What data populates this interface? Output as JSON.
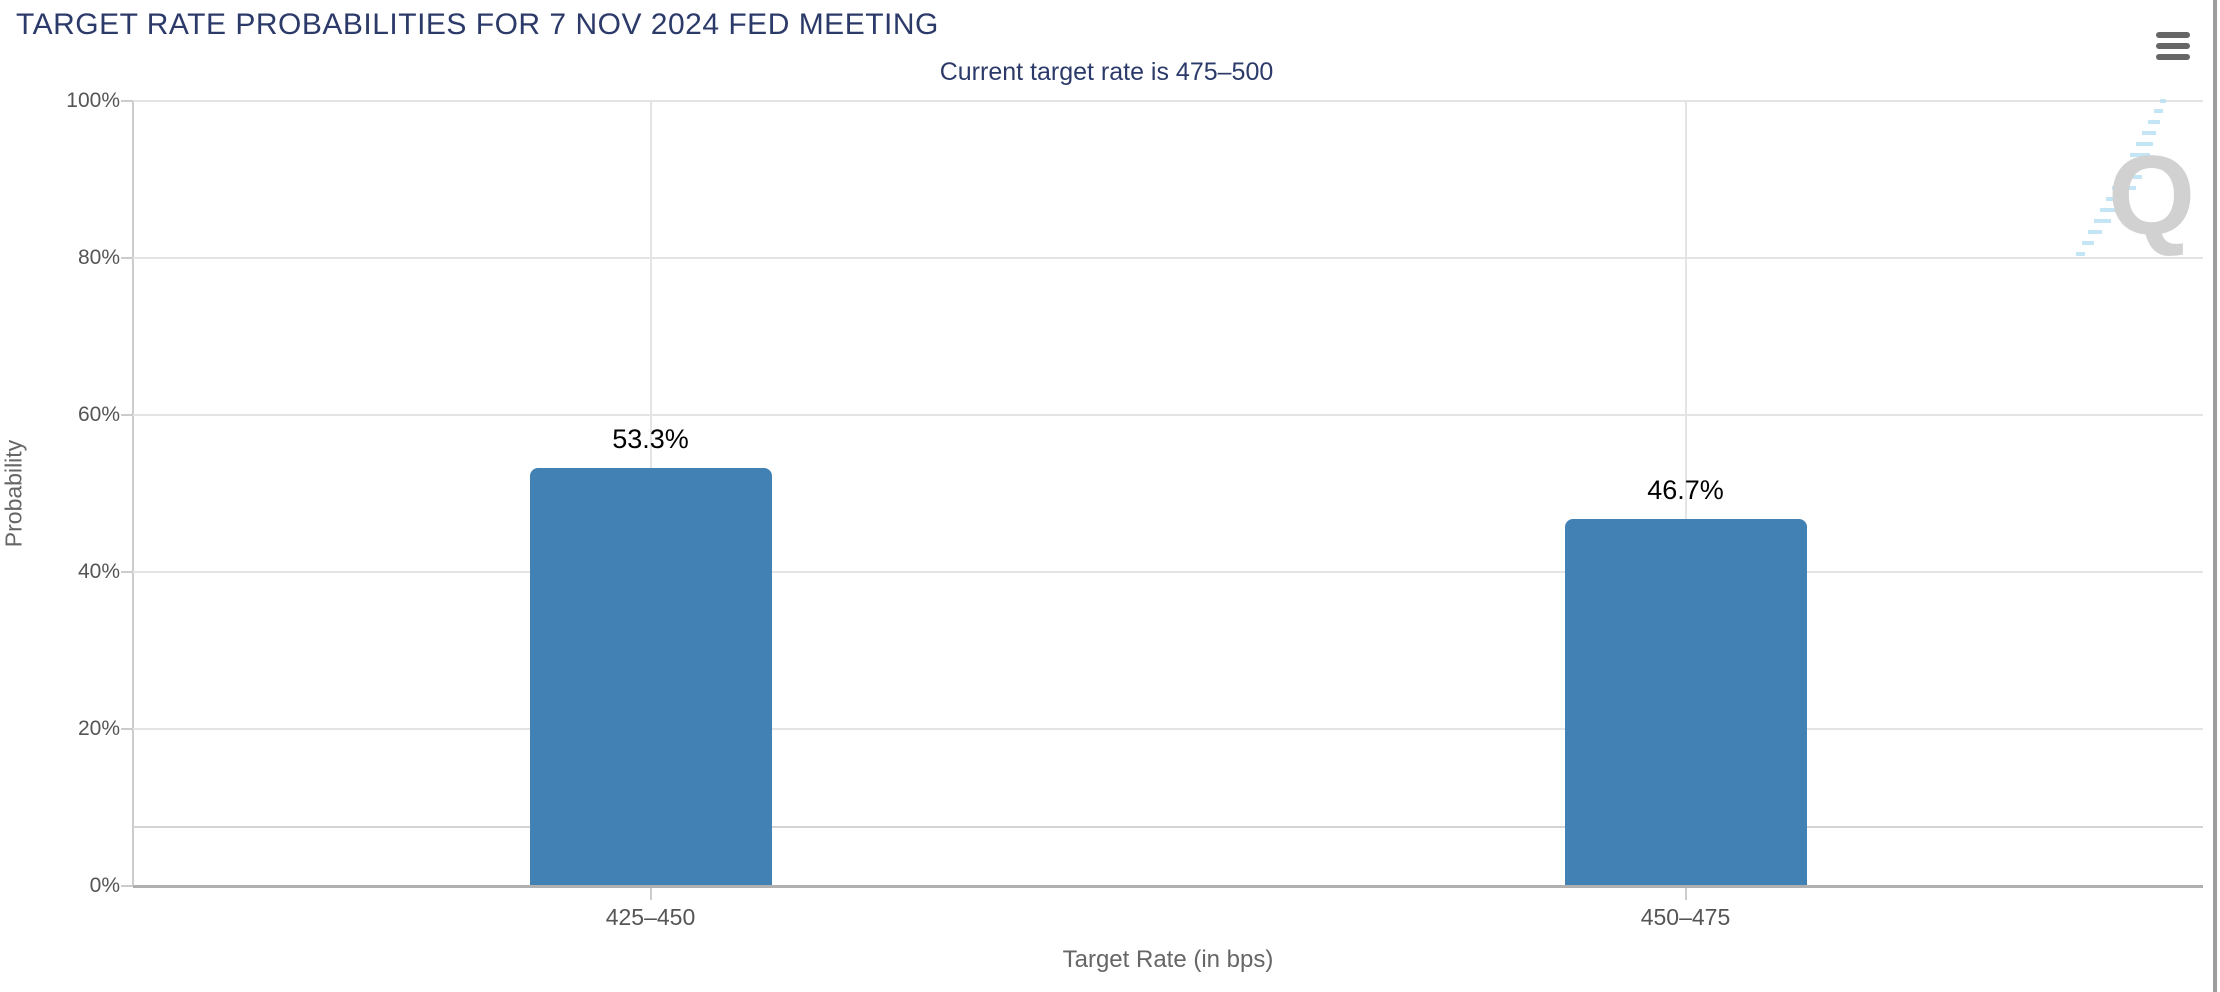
{
  "header": {
    "title": "TARGET RATE PROBABILITIES FOR 7 NOV 2024 FED MEETING",
    "subtitle": "Current target rate is 475–500",
    "menu_icon": "hamburger-icon"
  },
  "chart_data": {
    "type": "bar",
    "title": "TARGET RATE PROBABILITIES FOR 7 NOV 2024 FED MEETING",
    "subtitle": "Current target rate is 475–500",
    "categories": [
      "425–450",
      "450–475"
    ],
    "values": [
      53.3,
      46.7
    ],
    "value_labels": [
      "53.3%",
      "46.7%"
    ],
    "xlabel": "Target Rate (in bps)",
    "ylabel": "Probability",
    "ylim": [
      0,
      100
    ],
    "yticks": [
      0,
      20,
      40,
      60,
      80,
      100
    ],
    "ytick_labels": [
      "0%",
      "20%",
      "40%",
      "60%",
      "80%",
      "100%"
    ],
    "extra_gridline_pct": 7.5,
    "grid": true,
    "legend": "none",
    "bar_color": "#4281b4"
  },
  "colors": {
    "title_text": "#2b3a69",
    "axis_label": "#555555",
    "axis_title": "#666666",
    "gridline": "#e4e4e4",
    "yaxis_line": "#cccccc",
    "baseline": "#b0b0b0",
    "extra_line": "#d4d4d4",
    "bar": "#4281b4",
    "value_label": "#000000",
    "menu_icon": "#666666",
    "watermark_q": "#c9c9c9",
    "watermark_dash": "#b9e1f4",
    "scrollbar": "#9c9c9c"
  },
  "watermark": {
    "name": "quikstrike-logo",
    "letter": "Q"
  }
}
